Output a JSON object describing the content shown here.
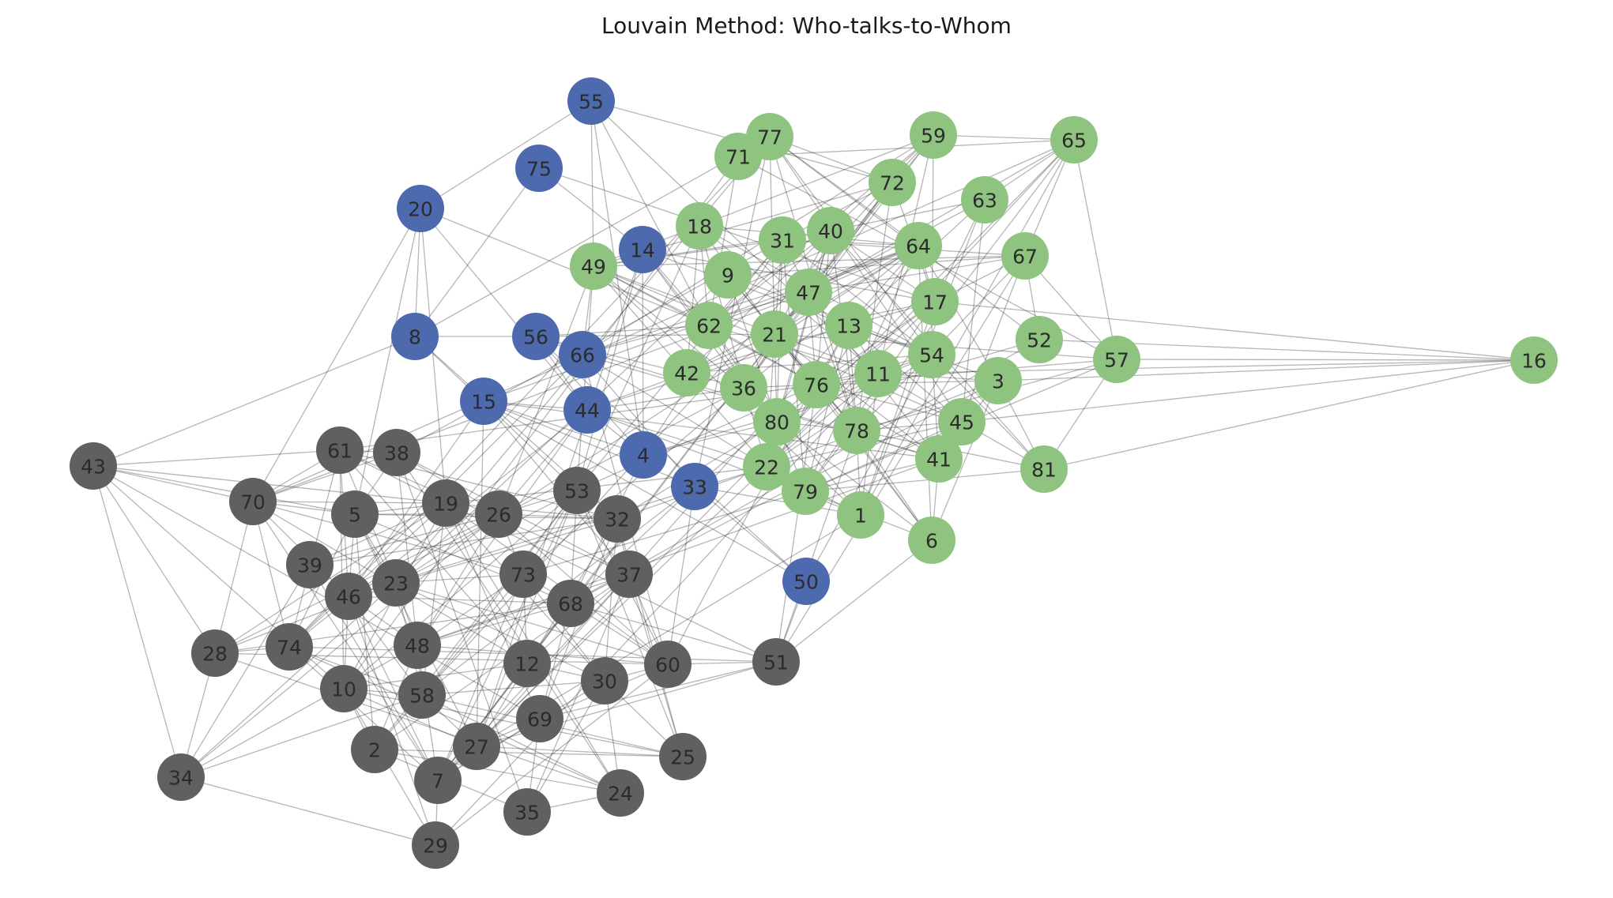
{
  "title": "Louvain Method: Who-talks-to-Whom",
  "communities": [
    {
      "id": "blue",
      "color": "#4c6aad",
      "members": [
        "55",
        "75",
        "20",
        "14",
        "8",
        "56",
        "66",
        "15",
        "44",
        "4",
        "33",
        "50"
      ]
    },
    {
      "id": "green",
      "color": "#8fc380",
      "members": [
        "77",
        "71",
        "59",
        "65",
        "72",
        "63",
        "18",
        "31",
        "40",
        "64",
        "67",
        "49",
        "9",
        "47",
        "17",
        "52",
        "57",
        "16",
        "62",
        "21",
        "13",
        "54",
        "42",
        "36",
        "76",
        "11",
        "3",
        "80",
        "78",
        "45",
        "41",
        "81",
        "22",
        "79",
        "1",
        "6"
      ]
    },
    {
      "id": "gray",
      "color": "#606060",
      "members": [
        "43",
        "61",
        "38",
        "70",
        "5",
        "19",
        "26",
        "53",
        "32",
        "39",
        "23",
        "46",
        "73",
        "37",
        "68",
        "28",
        "74",
        "48",
        "12",
        "60",
        "51",
        "10",
        "58",
        "30",
        "69",
        "27",
        "2",
        "7",
        "25",
        "24",
        "34",
        "35",
        "29"
      ]
    }
  ],
  "nodes": [
    "55",
    "75",
    "20",
    "14",
    "8",
    "56",
    "66",
    "15",
    "44",
    "4",
    "33",
    "50",
    "77",
    "71",
    "59",
    "65",
    "72",
    "63",
    "18",
    "31",
    "40",
    "64",
    "67",
    "49",
    "9",
    "47",
    "17",
    "52",
    "57",
    "16",
    "62",
    "21",
    "13",
    "54",
    "42",
    "36",
    "76",
    "11",
    "3",
    "80",
    "78",
    "45",
    "41",
    "81",
    "22",
    "79",
    "1",
    "6",
    "43",
    "61",
    "38",
    "70",
    "5",
    "19",
    "26",
    "53",
    "32",
    "39",
    "23",
    "46",
    "73",
    "37",
    "68",
    "28",
    "74",
    "48",
    "12",
    "60",
    "51",
    "10",
    "58",
    "30",
    "69",
    "27",
    "2",
    "7",
    "25",
    "24",
    "34",
    "35",
    "29"
  ]
}
